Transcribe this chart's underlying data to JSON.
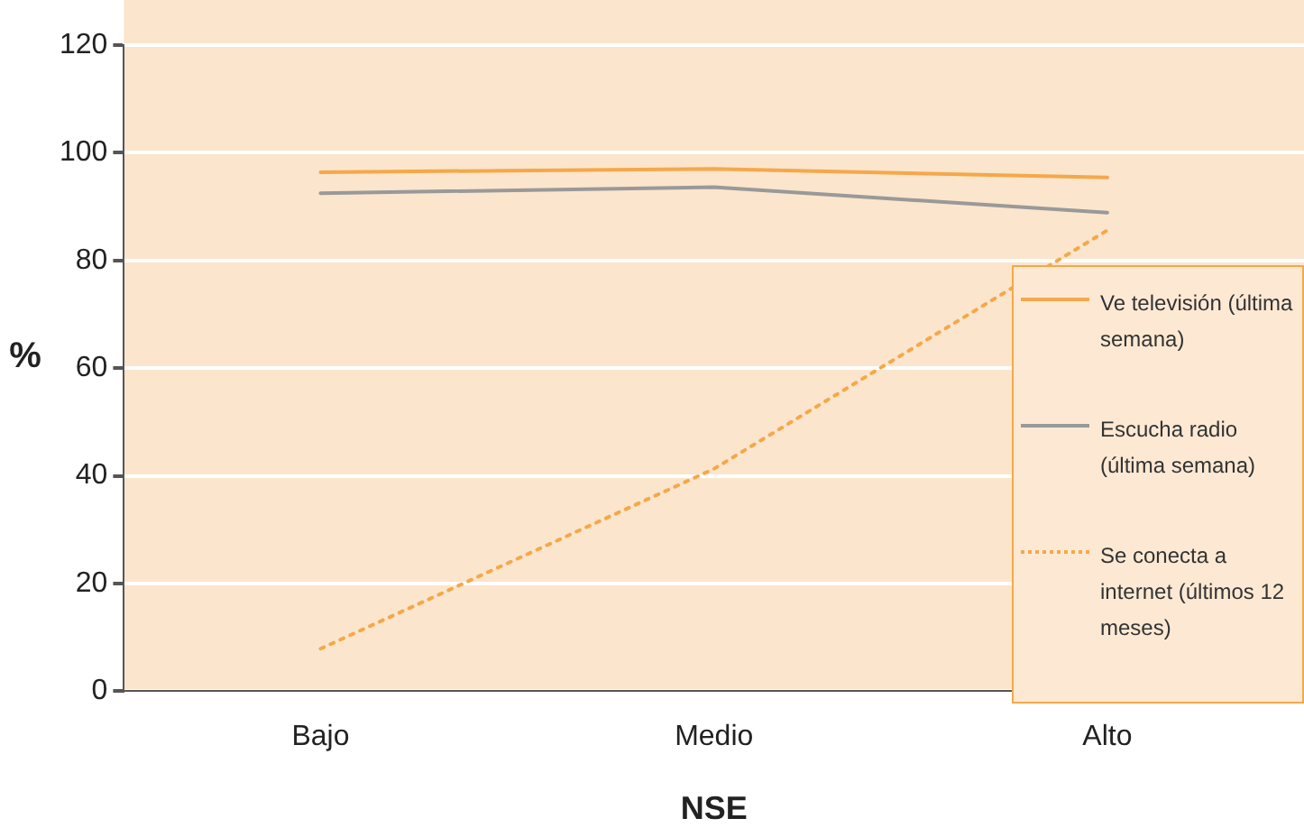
{
  "chart_data": {
    "type": "line",
    "xlabel": "NSE",
    "ylabel": "%",
    "categories": [
      "Bajo",
      "Medio",
      "Alto"
    ],
    "series": [
      {
        "name": "Ve televisión (última semana)",
        "color": "#f5a84a",
        "values": [
          96.4,
          97.0,
          95.4
        ],
        "line_style": "solid"
      },
      {
        "name": "Escucha radio (última semana)",
        "color": "#999999",
        "values": [
          92.5,
          93.6,
          88.9
        ],
        "line_style": "solid"
      },
      {
        "name": "Se conecta a internet (últimos 12 meses)",
        "color": "#f5a84a",
        "values": [
          7.9,
          41.3,
          85.6
        ],
        "line_style": "dotted"
      }
    ],
    "ylim": [
      0,
      120
    ],
    "yticks": [
      0,
      20,
      40,
      60,
      80,
      100,
      120
    ],
    "grid": "y",
    "legend": "right",
    "marker": "none"
  }
}
